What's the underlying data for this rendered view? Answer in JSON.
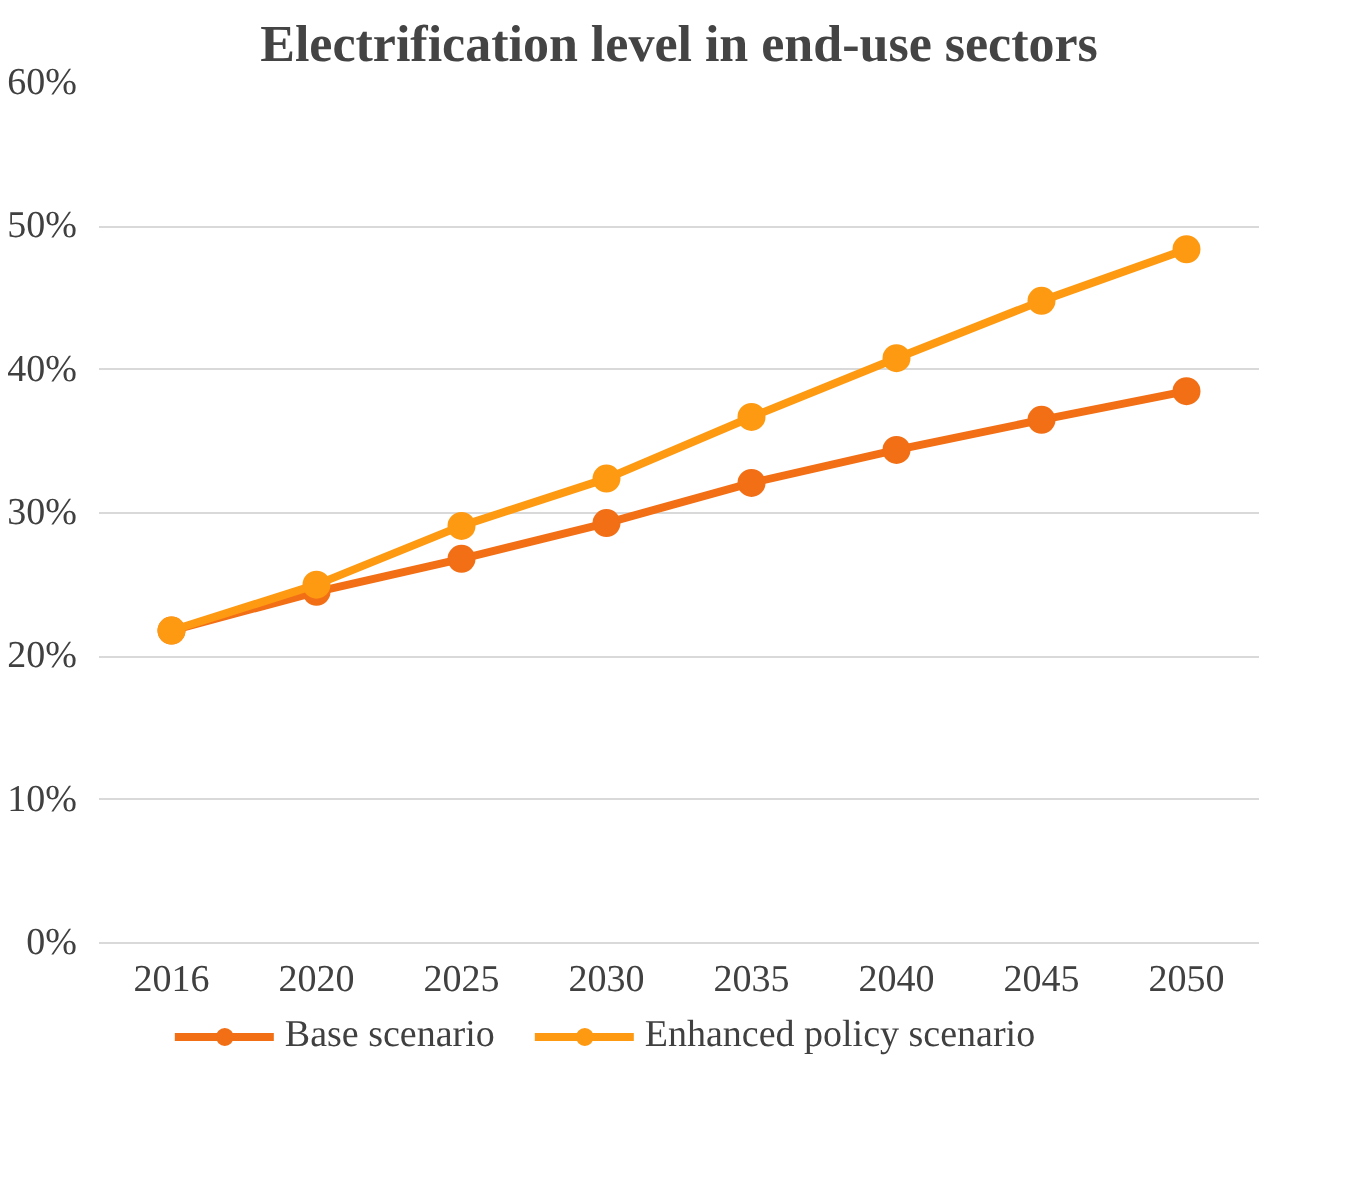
{
  "chart_data": {
    "type": "line",
    "title": "Electrification level in end-use sectors",
    "categories": [
      "2016",
      "2020",
      "2025",
      "2030",
      "2035",
      "2040",
      "2045",
      "2050"
    ],
    "series": [
      {
        "name": "Base scenario",
        "color": "#f26f16",
        "values": [
          21.8,
          24.5,
          26.8,
          29.3,
          32.1,
          34.4,
          36.5,
          38.5
        ]
      },
      {
        "name": "Enhanced policy scenario",
        "color": "#fe9a12",
        "values": [
          21.8,
          25.0,
          29.1,
          32.4,
          36.7,
          40.8,
          44.8,
          48.4
        ]
      }
    ],
    "ylim": [
      0,
      60
    ],
    "yticks": [
      {
        "value": 0,
        "label": "0%"
      },
      {
        "value": 10,
        "label": "10%"
      },
      {
        "value": 20,
        "label": "20%"
      },
      {
        "value": 30,
        "label": "30%"
      },
      {
        "value": 40,
        "label": "40%"
      },
      {
        "value": 50,
        "label": "50%"
      },
      {
        "value": 60,
        "label": "60%"
      }
    ],
    "grid": "y",
    "legend": "bottom",
    "marker": "circle",
    "line_style": "solid"
  }
}
